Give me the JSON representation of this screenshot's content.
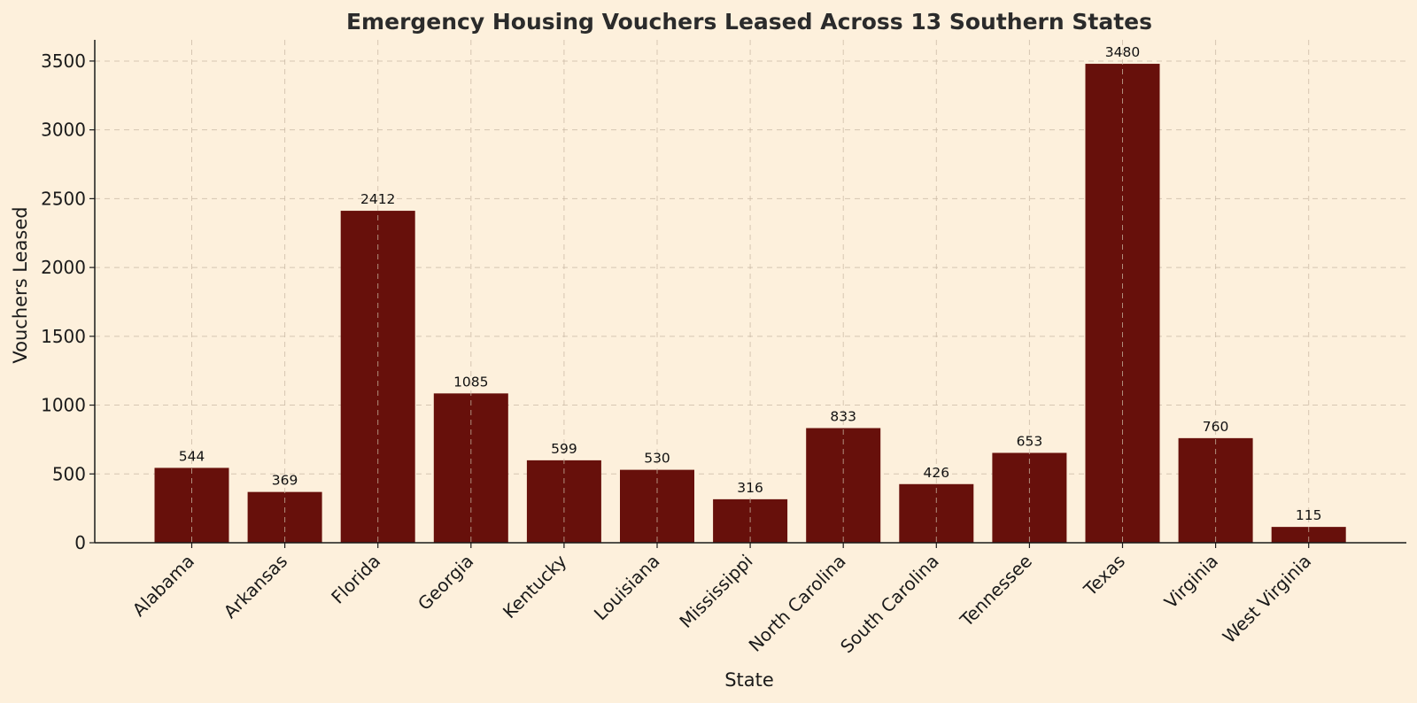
{
  "colors": {
    "background": "#fdf0dc",
    "bar": "#67100b",
    "title": "#2b2b2b"
  },
  "chart_data": {
    "type": "bar",
    "title": "Emergency Housing Vouchers Leased Across 13 Southern States",
    "xlabel": "State",
    "ylabel": "Vouchers Leased",
    "categories": [
      "Alabama",
      "Arkansas",
      "Florida",
      "Georgia",
      "Kentucky",
      "Louisiana",
      "Mississippi",
      "North Carolina",
      "South Carolina",
      "Tennessee",
      "Texas",
      "Virginia",
      "West Virginia"
    ],
    "values": [
      544,
      369,
      2412,
      1085,
      599,
      530,
      316,
      833,
      426,
      653,
      3480,
      760,
      115
    ],
    "data_labels": [
      "544",
      "369",
      "2412",
      "1085",
      "599",
      "530",
      "316",
      "833",
      "426",
      "653",
      "3480",
      "760",
      "115"
    ],
    "ylim": [
      0,
      3654
    ],
    "yticks": [
      0,
      500,
      1000,
      1500,
      2000,
      2500,
      3000,
      3500
    ],
    "ytick_labels": [
      "0",
      "500",
      "1000",
      "1500",
      "2000",
      "2500",
      "3000",
      "3500"
    ],
    "grid": true
  }
}
